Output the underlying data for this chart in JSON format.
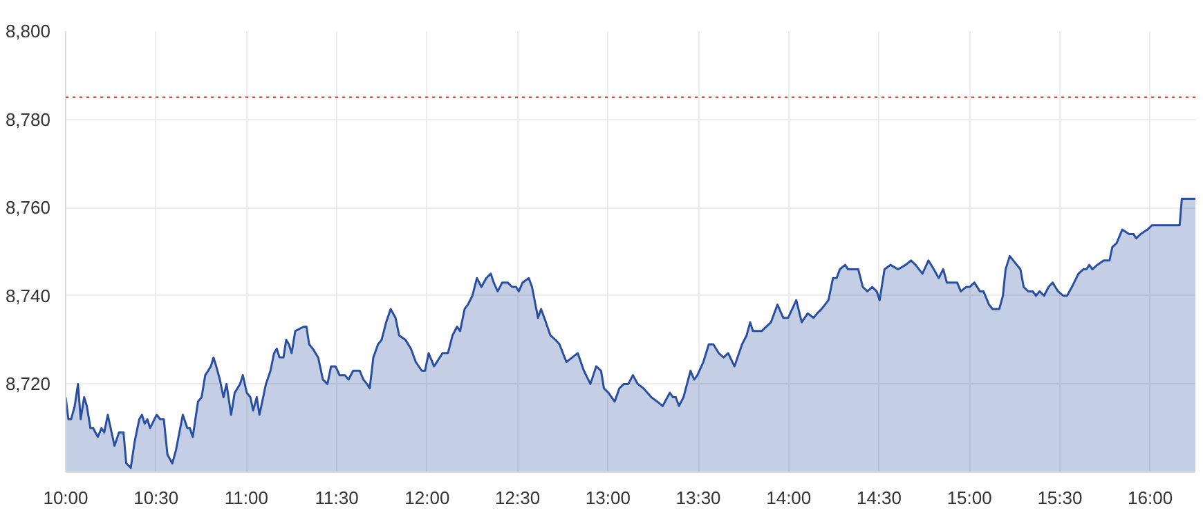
{
  "chart_data": {
    "type": "area",
    "x": [
      10.0,
      10.015,
      10.03,
      10.05,
      10.068,
      10.083,
      10.102,
      10.117,
      10.137,
      10.152,
      10.178,
      10.198,
      10.213,
      10.233,
      10.27,
      10.295,
      10.32,
      10.335,
      10.36,
      10.382,
      10.407,
      10.422,
      10.437,
      10.452,
      10.467,
      10.503,
      10.523,
      10.543,
      10.563,
      10.59,
      10.61,
      10.648,
      10.673,
      10.687,
      10.703,
      10.732,
      10.752,
      10.772,
      10.788,
      10.803,
      10.818,
      10.833,
      10.853,
      10.873,
      10.89,
      10.915,
      10.935,
      10.965,
      10.98,
      11.002,
      11.022,
      11.037,
      11.057,
      11.072,
      11.108,
      11.133,
      11.153,
      11.168,
      11.183,
      11.205,
      11.22,
      11.235,
      11.25,
      11.27,
      11.317,
      11.332,
      11.347,
      11.367,
      11.397,
      11.423,
      11.448,
      11.468,
      11.493,
      11.515,
      11.545,
      11.565,
      11.59,
      11.627,
      11.647,
      11.667,
      11.682,
      11.702,
      11.728,
      11.748,
      11.773,
      11.798,
      11.825,
      11.845,
      11.88,
      11.91,
      11.937,
      11.97,
      11.988,
      12.008,
      12.038,
      12.085,
      12.115,
      12.14,
      12.165,
      12.182,
      12.207,
      12.225,
      12.25,
      12.275,
      12.3,
      12.327,
      12.352,
      12.368,
      12.39,
      12.415,
      12.445,
      12.47,
      12.492,
      12.507,
      12.528,
      12.562,
      12.58,
      12.613,
      12.63,
      12.648,
      12.682,
      12.71,
      12.732,
      12.77,
      12.802,
      12.833,
      12.867,
      12.903,
      12.935,
      12.962,
      12.978,
      13.003,
      13.037,
      13.063,
      13.088,
      13.113,
      13.138,
      13.165,
      13.197,
      13.24,
      13.273,
      13.303,
      13.342,
      13.36,
      13.375,
      13.393,
      13.418,
      13.457,
      13.477,
      13.495,
      13.528,
      13.558,
      13.583,
      13.613,
      13.64,
      13.665,
      13.7,
      13.742,
      13.767,
      13.787,
      13.802,
      13.825,
      13.85,
      13.902,
      13.938,
      13.97,
      13.997,
      14.042,
      14.072,
      14.105,
      14.138,
      14.157,
      14.182,
      14.22,
      14.245,
      14.265,
      14.283,
      14.312,
      14.328,
      14.352,
      14.385,
      14.41,
      14.435,
      14.462,
      14.487,
      14.503,
      14.53,
      14.563,
      14.605,
      14.647,
      14.677,
      14.702,
      14.74,
      14.773,
      14.803,
      14.83,
      14.855,
      14.875,
      14.905,
      14.932,
      14.952,
      14.982,
      15.002,
      15.027,
      15.058,
      15.078,
      15.108,
      15.128,
      15.165,
      15.185,
      15.2,
      15.223,
      15.262,
      15.282,
      15.3,
      15.325,
      15.35,
      15.368,
      15.388,
      15.413,
      15.438,
      15.46,
      15.49,
      15.52,
      15.54,
      15.567,
      15.603,
      15.63,
      15.647,
      15.663,
      15.68,
      15.707,
      15.743,
      15.775,
      15.79,
      15.815,
      15.845,
      15.883,
      15.908,
      15.922,
      15.947,
      15.985,
      16.01,
      16.163,
      16.175,
      16.25
    ],
    "series": [
      {
        "color": "#2a4fa0",
        "values": [
          8717,
          8712,
          8712,
          8715,
          8720,
          8712,
          8717,
          8715,
          8710,
          8710,
          8708,
          8710,
          8709,
          8713,
          8706,
          8709,
          8709,
          8702,
          8701,
          8707,
          8712,
          8713,
          8711,
          8712,
          8710,
          8713,
          8712,
          8712,
          8704,
          8702,
          8705,
          8713,
          8710,
          8710,
          8708,
          8716,
          8717,
          8722,
          8723,
          8724,
          8726,
          8724,
          8721,
          8717,
          8720,
          8713,
          8718,
          8720,
          8722,
          8718,
          8717,
          8714,
          8717,
          8713,
          8720,
          8723,
          8727,
          8728,
          8726,
          8726,
          8730,
          8729,
          8727,
          8732,
          8733,
          8733,
          8729,
          8728,
          8726,
          8721,
          8720,
          8724,
          8724,
          8722,
          8722,
          8721,
          8723,
          8723,
          8721,
          8720,
          8719,
          8726,
          8729,
          8730,
          8734,
          8737,
          8735,
          8731,
          8730,
          8728,
          8725,
          8723,
          8723,
          8727,
          8724,
          8727,
          8727,
          8731,
          8733,
          8732,
          8737,
          8738,
          8740,
          8744,
          8742,
          8744,
          8745,
          8743,
          8741,
          8743,
          8743,
          8742,
          8742,
          8741,
          8743,
          8744,
          8742,
          8735,
          8737,
          8735,
          8731,
          8730,
          8729,
          8725,
          8726,
          8727,
          8723,
          8720,
          8724,
          8723,
          8719,
          8718,
          8716,
          8719,
          8720,
          8720,
          8722,
          8720,
          8719,
          8717,
          8716,
          8715,
          8718,
          8717,
          8717,
          8715,
          8717,
          8723,
          8721,
          8722,
          8725,
          8729,
          8729,
          8727,
          8726,
          8727,
          8724,
          8729,
          8731,
          8734,
          8732,
          8732,
          8732,
          8734,
          8738,
          8735,
          8735,
          8739,
          8734,
          8736,
          8735,
          8736,
          8737,
          8739,
          8744,
          8744,
          8746,
          8747,
          8746,
          8746,
          8746,
          8742,
          8741,
          8742,
          8741,
          8739,
          8746,
          8747,
          8746,
          8747,
          8748,
          8747,
          8745,
          8748,
          8746,
          8744,
          8746,
          8743,
          8743,
          8743,
          8741,
          8742,
          8742,
          8743,
          8741,
          8741,
          8738,
          8737,
          8737,
          8740,
          8746,
          8749,
          8747,
          8746,
          8742,
          8741,
          8741,
          8740,
          8741,
          8740,
          8742,
          8743,
          8741,
          8740,
          8740,
          8742,
          8745,
          8746,
          8746,
          8747,
          8746,
          8747,
          8748,
          8748,
          8751,
          8752,
          8755,
          8754,
          8754,
          8753,
          8754,
          8755,
          8756,
          8756,
          8762,
          8762
        ]
      }
    ],
    "xlim": [
      10.0,
      16.25
    ],
    "ylim": [
      8700,
      8800
    ],
    "xticks": [
      {
        "value": 10,
        "label": "10:00"
      },
      {
        "value": 10.5,
        "label": "10:30"
      },
      {
        "value": 11,
        "label": "11:00"
      },
      {
        "value": 11.5,
        "label": "11:30"
      },
      {
        "value": 12,
        "label": "12:00"
      },
      {
        "value": 12.5,
        "label": "12:30"
      },
      {
        "value": 13,
        "label": "13:00"
      },
      {
        "value": 13.5,
        "label": "13:30"
      },
      {
        "value": 14,
        "label": "14:00"
      },
      {
        "value": 14.5,
        "label": "14:30"
      },
      {
        "value": 15,
        "label": "15:00"
      },
      {
        "value": 15.5,
        "label": "15:30"
      },
      {
        "value": 16,
        "label": "16:00"
      }
    ],
    "yticks": [
      {
        "value": 8720,
        "label": "8,720"
      },
      {
        "value": 8740,
        "label": "8,740"
      },
      {
        "value": 8760,
        "label": "8,760"
      },
      {
        "value": 8780,
        "label": "8,780"
      },
      {
        "value": 8800,
        "label": "8,800"
      }
    ],
    "ref_lines": [
      {
        "axis": "y",
        "value": 8785,
        "color": "#e8493f",
        "line_style": "dotted"
      }
    ],
    "grid": true
  }
}
